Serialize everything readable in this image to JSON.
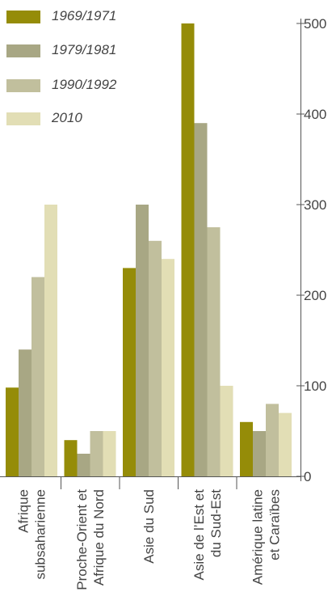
{
  "chart_data": {
    "type": "bar",
    "categories": [
      [
        "Afrique",
        "subsaharienne"
      ],
      [
        "Proche-Orient et",
        "Afrique du Nord"
      ],
      [
        "Asie du Sud"
      ],
      [
        "Asie de l’Est et",
        "du Sud-Est"
      ],
      [
        "Amérique latine",
        "et Caraïbes"
      ]
    ],
    "series": [
      {
        "name": "1969/1971",
        "color": "#958c08",
        "values": [
          98,
          40,
          230,
          500,
          60
        ]
      },
      {
        "name": "1979/1981",
        "color": "#a8a784",
        "values": [
          140,
          25,
          300,
          390,
          50
        ]
      },
      {
        "name": "1990/1992",
        "color": "#c1bf9d",
        "values": [
          220,
          50,
          260,
          275,
          80
        ]
      },
      {
        "name": "2010",
        "color": "#e2deb5",
        "values": [
          300,
          50,
          240,
          100,
          70
        ]
      }
    ],
    "y_ticks": [
      0,
      100,
      200,
      300,
      400,
      500
    ],
    "ylim": [
      0,
      500
    ],
    "y_axis_side": "right",
    "legend_position": "top-left"
  }
}
